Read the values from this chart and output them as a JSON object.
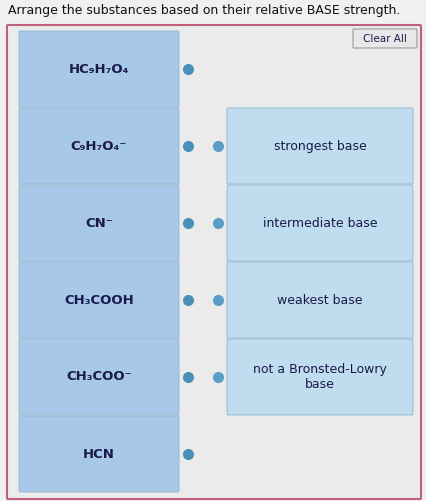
{
  "title": "Arrange the substances based on their relative BASE strength.",
  "clear_all_text": "Clear All",
  "bg_color": "#f0f0f0",
  "outer_bg": "#e8e8e8",
  "outer_border_color": "#c0607a",
  "left_items": [
    {
      "label": "HC₉H₇O₄",
      "row": 0
    },
    {
      "label": "C₉H₇O₄⁻",
      "row": 1
    },
    {
      "label": "CN⁻",
      "row": 2
    },
    {
      "label": "CH₃COOH",
      "row": 3
    },
    {
      "label": "CH₃COO⁻",
      "row": 4
    },
    {
      "label": "HCN",
      "row": 5
    }
  ],
  "right_items": [
    {
      "label": "strongest base",
      "row": 1
    },
    {
      "label": "intermediate base",
      "row": 2
    },
    {
      "label": "weakest base",
      "row": 3
    },
    {
      "label": "not a Bronsted-Lowry\nbase",
      "row": 4
    }
  ],
  "left_cell_bg": "#a8c8e8",
  "right_cell_bg": "#c0ddf0",
  "outer_panel_bg": "#d8d8d8",
  "dot_color_left": "#4a90b8",
  "dot_color_right": "#5a9ec8",
  "text_color": "#1a1a4a",
  "font_size": 9.5,
  "title_font_size": 9,
  "btn_bg": "#e8e8e8",
  "btn_border": "#999999"
}
